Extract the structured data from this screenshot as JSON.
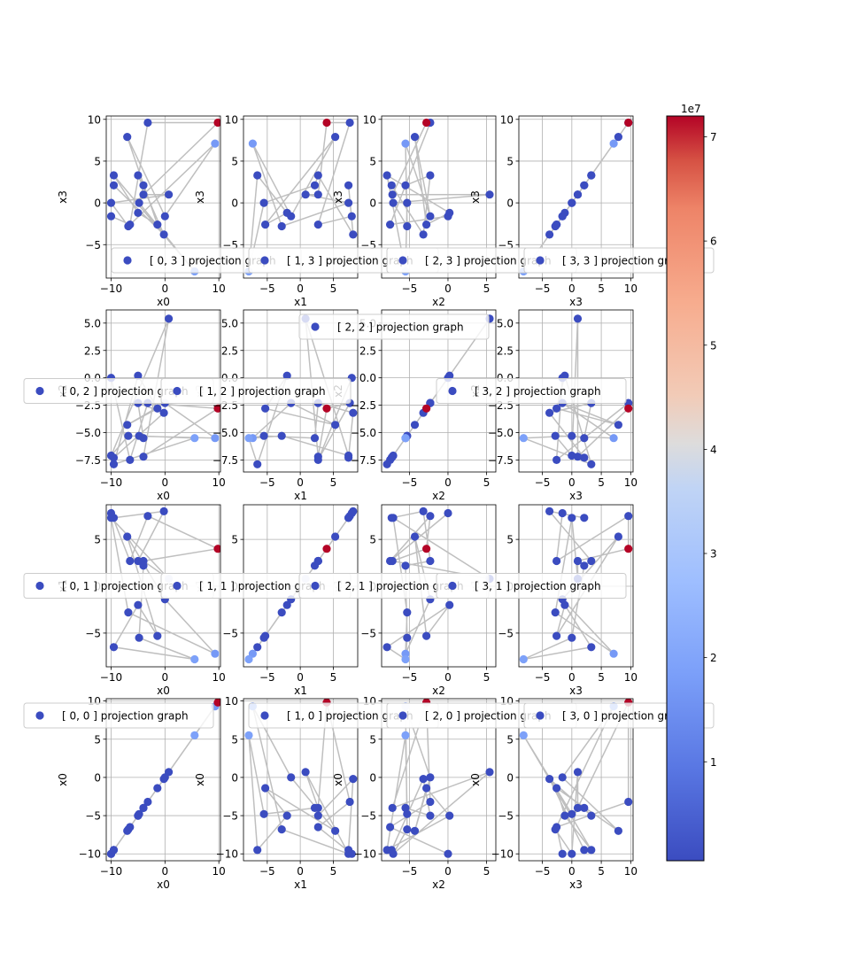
{
  "figure": {
    "colorbar": {
      "exponent_label": "1e7",
      "min": 0.05,
      "max": 7.2,
      "ticks": [
        1,
        2,
        3,
        4,
        5,
        6,
        7
      ],
      "tick_labels": [
        "1",
        "2",
        "3",
        "4",
        "5",
        "6",
        "7"
      ]
    },
    "colors": {
      "low": "#3b4cc0",
      "mid": "#dddddd",
      "high": "#b40426",
      "line": "#bfbfbf",
      "grid": "#b0b0b0"
    }
  },
  "chart_data": {
    "type": "scatter",
    "points": [
      {
        "x0": 9.8,
        "x1": 4.0,
        "x2": -2.8,
        "x3": 9.6,
        "c": 7.2
      },
      {
        "x0": 5.5,
        "x1": -7.8,
        "x2": -5.5,
        "x3": -8.2,
        "c": 1.9
      },
      {
        "x0": 9.3,
        "x1": -7.2,
        "x2": -5.5,
        "x3": 7.1,
        "c": 1.7
      },
      {
        "x0": -10.0,
        "x1": 7.3,
        "x2": -7.1,
        "x3": 0.0,
        "c": 0.05
      },
      {
        "x0": -9.5,
        "x1": 7.3,
        "x2": -7.3,
        "x3": 2.1,
        "c": 0.05
      },
      {
        "x0": -7.0,
        "x1": 5.3,
        "x2": -4.3,
        "x3": 7.9,
        "c": 0.05
      },
      {
        "x0": -6.5,
        "x1": 2.7,
        "x2": -7.5,
        "x3": -2.6,
        "c": 0.05
      },
      {
        "x0": -5.0,
        "x1": -2.0,
        "x2": 0.2,
        "x3": -1.2,
        "c": 0.05
      },
      {
        "x0": -4.8,
        "x1": -5.5,
        "x2": -5.3,
        "x3": 0.0,
        "c": 0.05
      },
      {
        "x0": -4.0,
        "x1": 2.7,
        "x2": -7.2,
        "x3": 1.0,
        "c": 0.05
      },
      {
        "x0": -3.2,
        "x1": 7.5,
        "x2": -2.3,
        "x3": 9.6,
        "c": 0.05
      },
      {
        "x0": -1.4,
        "x1": -5.3,
        "x2": -2.8,
        "x3": -2.6,
        "c": 0.05
      },
      {
        "x0": -0.2,
        "x1": 8.0,
        "x2": -3.2,
        "x3": -3.8,
        "c": 0.05
      },
      {
        "x0": 0.7,
        "x1": 0.8,
        "x2": 5.4,
        "x3": 1.0,
        "c": 0.05
      },
      {
        "x0": -10.0,
        "x1": 7.8,
        "x2": 0.0,
        "x3": -1.6,
        "c": 0.05
      },
      {
        "x0": -9.5,
        "x1": -6.5,
        "x2": -7.9,
        "x3": 3.3,
        "c": 0.05
      },
      {
        "x0": -5.0,
        "x1": 2.7,
        "x2": -2.3,
        "x3": 3.3,
        "c": 0.05
      },
      {
        "x0": -6.8,
        "x1": -2.8,
        "x2": -5.3,
        "x3": -2.8,
        "c": 0.05
      },
      {
        "x0": -4.0,
        "x1": 2.2,
        "x2": -5.5,
        "x3": 2.1,
        "c": 0.05
      },
      {
        "x0": 0.0,
        "x1": -1.4,
        "x2": -2.3,
        "x3": -1.6,
        "c": 0.05
      }
    ],
    "path_order": [
      14,
      6,
      10,
      0,
      9,
      13,
      3,
      17,
      2,
      19,
      5,
      11,
      7,
      15,
      1,
      8,
      18,
      16,
      12,
      4
    ],
    "panels": [
      {
        "row": 0,
        "col": 0,
        "x": "x0",
        "y": "x3",
        "legend": "[ 0, 3 ] projection graph",
        "show_xlabel": true,
        "show_ylabel": true,
        "xticks": [
          -10,
          0,
          10
        ],
        "yticks": [
          -5,
          0,
          5,
          10
        ],
        "legend_pos": "lower-center"
      },
      {
        "row": 0,
        "col": 1,
        "x": "x1",
        "y": "x3",
        "legend": "[ 1, 3 ] projection graph",
        "show_xlabel": true,
        "show_ylabel": true,
        "xticks": [
          -5,
          0,
          5
        ],
        "yticks": [
          -5,
          0,
          5,
          10
        ],
        "legend_pos": "lower-center"
      },
      {
        "row": 0,
        "col": 2,
        "x": "x2",
        "y": "x3",
        "legend": "[ 2, 3 ] projection graph",
        "show_xlabel": true,
        "show_ylabel": true,
        "xticks": [
          -5,
          0,
          5
        ],
        "yticks": [
          -5,
          0,
          5,
          10
        ],
        "legend_pos": "lower-center"
      },
      {
        "row": 0,
        "col": 3,
        "x": "x3",
        "y": "x3",
        "legend": "[ 3, 3 ] projection graph",
        "show_xlabel": true,
        "show_ylabel": true,
        "xticks": [
          -5,
          0,
          5,
          10
        ],
        "yticks": [
          -5,
          0,
          5,
          10
        ],
        "legend_pos": "lower-center"
      },
      {
        "row": 1,
        "col": 0,
        "x": "x0",
        "y": "x2",
        "legend": "[ 0, 2 ] projection graph",
        "show_xlabel": true,
        "show_ylabel": true,
        "xticks": [
          -10,
          0,
          10
        ],
        "yticks": [
          -7.5,
          -5.0,
          -2.5,
          0.0,
          2.5,
          5.0
        ],
        "ytick_labels": [
          "−7.5",
          "−5.0",
          "−2.5",
          "0.0",
          "2.5",
          "5.0"
        ],
        "legend_pos": "center"
      },
      {
        "row": 1,
        "col": 1,
        "x": "x1",
        "y": "x2",
        "legend": "[ 1, 2 ] projection graph",
        "show_xlabel": true,
        "show_ylabel": true,
        "xticks": [
          -5,
          0,
          5
        ],
        "yticks": [
          -7.5,
          -5.0,
          -2.5,
          0.0,
          2.5,
          5.0
        ],
        "ytick_labels": [
          "−7.5",
          "−5.0",
          "−2.5",
          "0.0",
          "2.5",
          "5.0"
        ],
        "legend_pos": "center"
      },
      {
        "row": 1,
        "col": 2,
        "x": "x2",
        "y": "x2",
        "legend": "[ 2, 2 ] projection graph",
        "show_xlabel": true,
        "show_ylabel": true,
        "xticks": [
          -5,
          0,
          5
        ],
        "yticks": [
          -7.5,
          -5.0,
          -2.5,
          0.0,
          2.5,
          5.0
        ],
        "ytick_labels": [
          "−7.5",
          "−5.0",
          "−2.5",
          "0.0",
          "2.5",
          "5.0"
        ],
        "legend_pos": "upper-center"
      },
      {
        "row": 1,
        "col": 3,
        "x": "x3",
        "y": "x2",
        "legend": "[ 3, 2 ] projection graph",
        "show_xlabel": true,
        "show_ylabel": true,
        "xticks": [
          -5,
          0,
          5,
          10
        ],
        "yticks": [
          -7.5,
          -5.0,
          -2.5,
          0.0,
          2.5,
          5.0
        ],
        "ytick_labels": [
          "−7.5",
          "−5.0",
          "−2.5",
          "0.0",
          "2.5",
          "5.0"
        ],
        "legend_pos": "center"
      },
      {
        "row": 2,
        "col": 0,
        "x": "x0",
        "y": "x1",
        "legend": "[ 0, 1 ] projection graph",
        "show_xlabel": true,
        "show_ylabel": true,
        "xticks": [
          -10,
          0,
          10
        ],
        "yticks": [
          -5,
          0,
          5
        ],
        "legend_pos": "center"
      },
      {
        "row": 2,
        "col": 1,
        "x": "x1",
        "y": "x1",
        "legend": "[ 1, 1 ] projection graph",
        "show_xlabel": true,
        "show_ylabel": true,
        "xticks": [
          -5,
          0,
          5
        ],
        "yticks": [
          -5,
          0,
          5
        ],
        "legend_pos": "center"
      },
      {
        "row": 2,
        "col": 2,
        "x": "x2",
        "y": "x1",
        "legend": "[ 2, 1 ] projection graph",
        "show_xlabel": true,
        "show_ylabel": true,
        "xticks": [
          -5,
          0,
          5
        ],
        "yticks": [
          -5,
          0,
          5
        ],
        "legend_pos": "center"
      },
      {
        "row": 2,
        "col": 3,
        "x": "x3",
        "y": "x1",
        "legend": "[ 3, 1 ] projection graph",
        "show_xlabel": true,
        "show_ylabel": true,
        "xticks": [
          -5,
          0,
          5,
          10
        ],
        "yticks": [
          -5,
          0,
          5
        ],
        "legend_pos": "center"
      },
      {
        "row": 3,
        "col": 0,
        "x": "x0",
        "y": "x0",
        "legend": "[ 0, 0 ] projection graph",
        "show_xlabel": true,
        "show_ylabel": true,
        "xticks": [
          -10,
          0,
          10
        ],
        "yticks": [
          -10,
          -5,
          0,
          5,
          10
        ],
        "legend_pos": "upper-left"
      },
      {
        "row": 3,
        "col": 1,
        "x": "x1",
        "y": "x0",
        "legend": "[ 1, 0 ] projection graph",
        "show_xlabel": true,
        "show_ylabel": true,
        "xticks": [
          -5,
          0,
          5
        ],
        "yticks": [
          -10,
          -5,
          0,
          5,
          10
        ],
        "legend_pos": "upper-center"
      },
      {
        "row": 3,
        "col": 2,
        "x": "x2",
        "y": "x0",
        "legend": "[ 2, 0 ] projection graph",
        "show_xlabel": true,
        "show_ylabel": true,
        "xticks": [
          -5,
          0,
          5
        ],
        "yticks": [
          -10,
          -5,
          0,
          5,
          10
        ],
        "legend_pos": "upper-center"
      },
      {
        "row": 3,
        "col": 3,
        "x": "x3",
        "y": "x0",
        "legend": "[ 3, 0 ] projection graph",
        "show_xlabel": true,
        "show_ylabel": true,
        "xticks": [
          -5,
          0,
          5,
          10
        ],
        "yticks": [
          -10,
          -5,
          0,
          5,
          10
        ],
        "legend_pos": "upper-center"
      }
    ],
    "axis_ranges": {
      "x0": [
        -10.9,
        10.3
      ],
      "x1": [
        -8.6,
        8.7
      ],
      "x2": [
        -8.6,
        6.2
      ],
      "x3": [
        -9.0,
        10.4
      ]
    },
    "grid": true
  }
}
